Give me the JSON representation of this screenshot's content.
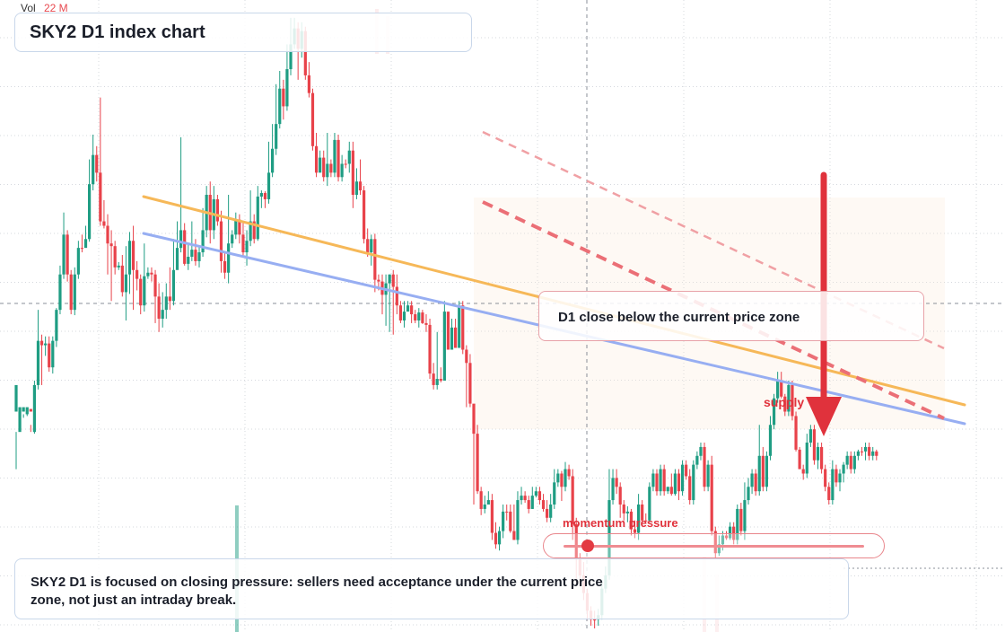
{
  "header": {
    "title": "SKY2 D1 index chart"
  },
  "volume": {
    "label": "Vol",
    "value": "22 M"
  },
  "annotations": {
    "callout": "D1 close below the current price zone",
    "supply": "supply",
    "momentum": "momentum pressure",
    "momentum_level": 0.06,
    "note": "SKY2 D1 is focused on closing pressure: sellers need acceptance under the current price zone, not just an intraday break."
  },
  "colors": {
    "up": "#1f9d83",
    "down": "#e8424a",
    "orange_trend": "#f6b858",
    "blue_trend": "#97aef2",
    "red_channel": "#eb6f76",
    "arrow": "#e0323c"
  },
  "chart_data": {
    "type": "candlestick",
    "title": "SKY2 D1 index chart",
    "candles_ohlc": [
      [
        455,
        425,
        520,
        478
      ],
      [
        478,
        450,
        465,
        455
      ],
      [
        455,
        450,
        462,
        458
      ],
      [
        458,
        450,
        460,
        452
      ],
      [
        452,
        455,
        470,
        478
      ],
      [
        478,
        425,
        420,
        480
      ],
      [
        425,
        375,
        340,
        430
      ],
      [
        375,
        380,
        368,
        425
      ],
      [
        380,
        378,
        370,
        392
      ],
      [
        378,
        405,
        370,
        410
      ],
      [
        405,
        375,
        370,
        412
      ],
      [
        375,
        340,
        338,
        382
      ],
      [
        340,
        300,
        290,
        345
      ],
      [
        300,
        255,
        230,
        305
      ],
      [
        255,
        300,
        250,
        308
      ],
      [
        300,
        340,
        295,
        345
      ],
      [
        340,
        300,
        292,
        346
      ],
      [
        300,
        270,
        262,
        305
      ],
      [
        270,
        270,
        255,
        275
      ],
      [
        270,
        260,
        245,
        265
      ],
      [
        260,
        198,
        170,
        263
      ],
      [
        198,
        165,
        142,
        205
      ],
      [
        165,
        185,
        155,
        195
      ],
      [
        185,
        240,
        100,
        245
      ],
      [
        240,
        245,
        216,
        248
      ],
      [
        245,
        265,
        232,
        300
      ],
      [
        265,
        268,
        250,
        330
      ],
      [
        268,
        292,
        262,
        300
      ],
      [
        292,
        290,
        286,
        295
      ],
      [
        290,
        320,
        278,
        325
      ],
      [
        320,
        300,
        268,
        352
      ],
      [
        300,
        262,
        252,
        322
      ],
      [
        262,
        295,
        245,
        340
      ],
      [
        295,
        305,
        285,
        318
      ],
      [
        305,
        335,
        300,
        345
      ],
      [
        335,
        302,
        265,
        342
      ],
      [
        302,
        298,
        292,
        305
      ],
      [
        298,
        300,
        292,
        308
      ],
      [
        300,
        325,
        295,
        355
      ],
      [
        325,
        350,
        310,
        365
      ],
      [
        350,
        340,
        320,
        360
      ],
      [
        340,
        325,
        310,
        350
      ],
      [
        325,
        330,
        292,
        340
      ],
      [
        330,
        295,
        260,
        335
      ],
      [
        295,
        270,
        240,
        280
      ],
      [
        270,
        250,
        145,
        275
      ],
      [
        250,
        288,
        242,
        290
      ],
      [
        288,
        280,
        265,
        295
      ],
      [
        280,
        272,
        240,
        285
      ],
      [
        272,
        285,
        260,
        290
      ],
      [
        285,
        275,
        268,
        292
      ],
      [
        275,
        250,
        225,
        280
      ],
      [
        250,
        210,
        200,
        258
      ],
      [
        210,
        250,
        195,
        265
      ],
      [
        250,
        215,
        200,
        260
      ],
      [
        215,
        240,
        210,
        245
      ],
      [
        240,
        285,
        228,
        298
      ],
      [
        285,
        298,
        275,
        305
      ],
      [
        298,
        265,
        210,
        310
      ],
      [
        265,
        255,
        250,
        270
      ],
      [
        255,
        238,
        230,
        260
      ],
      [
        238,
        255,
        232,
        265
      ],
      [
        255,
        275,
        240,
        280
      ],
      [
        275,
        262,
        250,
        290
      ],
      [
        262,
        240,
        205,
        268
      ],
      [
        240,
        260,
        232,
        265
      ],
      [
        260,
        212,
        200,
        262
      ],
      [
        212,
        208,
        205,
        225
      ],
      [
        208,
        215,
        206,
        225
      ],
      [
        215,
        185,
        150,
        220
      ],
      [
        185,
        158,
        130,
        190
      ],
      [
        158,
        130,
        85,
        165
      ],
      [
        130,
        90,
        70,
        135
      ],
      [
        90,
        110,
        80,
        125
      ],
      [
        110,
        68,
        40,
        115
      ],
      [
        68,
        40,
        10,
        75
      ],
      [
        40,
        22,
        10,
        45
      ],
      [
        22,
        45,
        15,
        80
      ],
      [
        45,
        25,
        15,
        55
      ],
      [
        25,
        75,
        20,
        80
      ],
      [
        75,
        95,
        60,
        100
      ],
      [
        95,
        155,
        90,
        160
      ],
      [
        155,
        185,
        140,
        190
      ],
      [
        185,
        168,
        160,
        175
      ],
      [
        168,
        190,
        160,
        195
      ],
      [
        190,
        175,
        140,
        200
      ],
      [
        175,
        185,
        170,
        190
      ],
      [
        185,
        148,
        140,
        190
      ],
      [
        148,
        190,
        142,
        195
      ],
      [
        190,
        175,
        165,
        195
      ],
      [
        175,
        175,
        170,
        180
      ],
      [
        175,
        160,
        150,
        185
      ],
      [
        160,
        210,
        150,
        225
      ],
      [
        210,
        195,
        180,
        215
      ],
      [
        195,
        205,
        170,
        210
      ],
      [
        205,
        260,
        200,
        265
      ],
      [
        260,
        275,
        248,
        280
      ],
      [
        275,
        260,
        255,
        290
      ],
      [
        260,
        306,
        254,
        320
      ],
      [
        306,
        308,
        300,
        318
      ],
      [
        308,
        323,
        300,
        345
      ],
      [
        323,
        310,
        300,
        358
      ],
      [
        310,
        300,
        300,
        365
      ],
      [
        300,
        314,
        295,
        368
      ],
      [
        314,
        335,
        300,
        345
      ],
      [
        335,
        352,
        330,
        355
      ],
      [
        352,
        342,
        330,
        360
      ],
      [
        342,
        335,
        330,
        340
      ],
      [
        335,
        345,
        330,
        355
      ],
      [
        345,
        352,
        340,
        355
      ],
      [
        352,
        343,
        338,
        360
      ],
      [
        343,
        355,
        340,
        356
      ],
      [
        355,
        357,
        345,
        365
      ],
      [
        357,
        412,
        350,
        418
      ],
      [
        412,
        425,
        400,
        430
      ],
      [
        425,
        418,
        365,
        430
      ],
      [
        418,
        420,
        405,
        422
      ],
      [
        420,
        342,
        330,
        360
      ],
      [
        342,
        385,
        370,
        380
      ],
      [
        385,
        360,
        350,
        375
      ],
      [
        360,
        383,
        350,
        370
      ],
      [
        383,
        335,
        330,
        380
      ],
      [
        335,
        385,
        330,
        390
      ],
      [
        385,
        400,
        380,
        450
      ],
      [
        400,
        446,
        390,
        450
      ],
      [
        446,
        480,
        560,
        470
      ],
      [
        480,
        545,
        470,
        548
      ],
      [
        545,
        565,
        540,
        572
      ],
      [
        565,
        560,
        550,
        570
      ],
      [
        560,
        555,
        545,
        560
      ],
      [
        555,
        592,
        548,
        600
      ],
      [
        592,
        605,
        580,
        610
      ],
      [
        605,
        590,
        585,
        612
      ],
      [
        590,
        568,
        560,
        598
      ],
      [
        568,
        568,
        560,
        578
      ],
      [
        568,
        590,
        560,
        592
      ],
      [
        590,
        600,
        560,
        600
      ],
      [
        600,
        555,
        545,
        605
      ],
      [
        555,
        550,
        540,
        560
      ],
      [
        550,
        555,
        545,
        558
      ],
      [
        555,
        565,
        550,
        570
      ],
      [
        565,
        550,
        540,
        565
      ],
      [
        550,
        545,
        540,
        552
      ],
      [
        545,
        555,
        540,
        560
      ],
      [
        555,
        565,
        548,
        568
      ],
      [
        565,
        575,
        555,
        580
      ],
      [
        575,
        560,
        548,
        580
      ],
      [
        560,
        535,
        520,
        565
      ],
      [
        535,
        525,
        520,
        540
      ],
      [
        525,
        540,
        522,
        556
      ],
      [
        540,
        520,
        512,
        545
      ],
      [
        520,
        528,
        515,
        532
      ],
      [
        528,
        582,
        520,
        600
      ],
      [
        582,
        622,
        575,
        650
      ],
      [
        622,
        640,
        615,
        648
      ],
      [
        640,
        660,
        625,
        668
      ],
      [
        660,
        680,
        655,
        690
      ],
      [
        680,
        690,
        675,
        697
      ],
      [
        690,
        690,
        680,
        700
      ],
      [
        690,
        685,
        678,
        697
      ],
      [
        685,
        655,
        645,
        690
      ],
      [
        655,
        640,
        630,
        660
      ],
      [
        640,
        555,
        520,
        645
      ],
      [
        555,
        530,
        520,
        560
      ],
      [
        530,
        540,
        520,
        548
      ],
      [
        540,
        560,
        535,
        575
      ],
      [
        560,
        570,
        555,
        578
      ],
      [
        570,
        568,
        562,
        580
      ],
      [
        568,
        588,
        565,
        595
      ],
      [
        588,
        592,
        578,
        598
      ],
      [
        592,
        560,
        548,
        600
      ],
      [
        560,
        578,
        555,
        585
      ],
      [
        578,
        578,
        570,
        580
      ],
      [
        578,
        540,
        535,
        580
      ],
      [
        540,
        525,
        520,
        545
      ],
      [
        525,
        545,
        520,
        550
      ],
      [
        545,
        520,
        515,
        550
      ],
      [
        520,
        545,
        515,
        550
      ],
      [
        545,
        540,
        540,
        548
      ],
      [
        540,
        548,
        525,
        550
      ],
      [
        548,
        525,
        520,
        550
      ],
      [
        525,
        545,
        520,
        555
      ],
      [
        545,
        515,
        510,
        550
      ],
      [
        515,
        528,
        510,
        532
      ],
      [
        528,
        555,
        520,
        560
      ],
      [
        555,
        515,
        510,
        560
      ],
      [
        515,
        505,
        500,
        520
      ],
      [
        505,
        495,
        490,
        510
      ],
      [
        495,
        540,
        490,
        545
      ],
      [
        540,
        515,
        510,
        545
      ],
      [
        515,
        590,
        505,
        595
      ],
      [
        590,
        615,
        585,
        620
      ],
      [
        615,
        605,
        595,
        618
      ],
      [
        605,
        595,
        590,
        612
      ],
      [
        595,
        598,
        590,
        600
      ],
      [
        598,
        585,
        580,
        600
      ],
      [
        585,
        600,
        580,
        605
      ],
      [
        600,
        565,
        560,
        605
      ],
      [
        565,
        590,
        558,
        595
      ],
      [
        590,
        555,
        535,
        600
      ],
      [
        555,
        540,
        530,
        560
      ],
      [
        540,
        525,
        520,
        548
      ],
      [
        525,
        545,
        520,
        550
      ],
      [
        545,
        505,
        470,
        550
      ],
      [
        505,
        540,
        495,
        545
      ],
      [
        540,
        505,
        500,
        545
      ],
      [
        505,
        470,
        460,
        510
      ],
      [
        470,
        440,
        435,
        475
      ],
      [
        440,
        420,
        410,
        445
      ],
      [
        420,
        438,
        410,
        440
      ],
      [
        438,
        455,
        435,
        460
      ],
      [
        455,
        425,
        420,
        460
      ],
      [
        425,
        460,
        420,
        465
      ],
      [
        460,
        498,
        455,
        500
      ],
      [
        498,
        520,
        495,
        520
      ],
      [
        520,
        525,
        515,
        532
      ],
      [
        525,
        490,
        480,
        530
      ],
      [
        490,
        475,
        470,
        495
      ],
      [
        475,
        510,
        470,
        515
      ],
      [
        510,
        495,
        490,
        520
      ],
      [
        495,
        520,
        490,
        525
      ],
      [
        520,
        540,
        515,
        545
      ],
      [
        540,
        555,
        535,
        560
      ],
      [
        555,
        520,
        510,
        560
      ],
      [
        520,
        535,
        515,
        540
      ],
      [
        535,
        525,
        520,
        545
      ],
      [
        525,
        515,
        512,
        535
      ],
      [
        515,
        505,
        500,
        520
      ],
      [
        505,
        520,
        500,
        525
      ],
      [
        520,
        505,
        500,
        525
      ],
      [
        505,
        500,
        498,
        510
      ],
      [
        500,
        500,
        495,
        505
      ],
      [
        500,
        495,
        490,
        510
      ],
      [
        495,
        505,
        490,
        510
      ],
      [
        505,
        500,
        495,
        510
      ],
      [
        500,
        505,
        498,
        510
      ]
    ]
  }
}
